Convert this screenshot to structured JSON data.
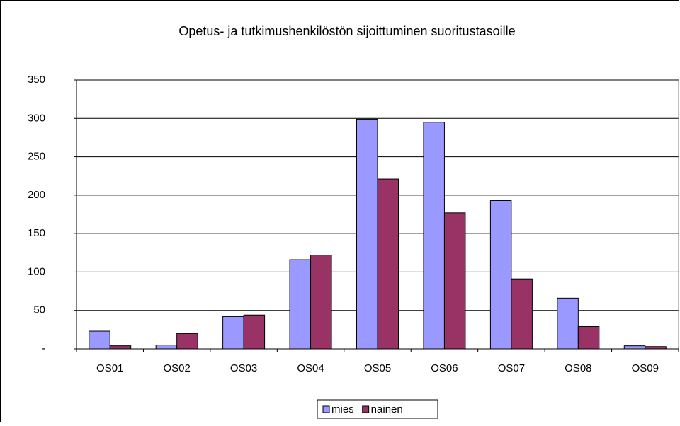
{
  "chart_data": {
    "type": "bar",
    "title": "Opetus- ja tutkimushenkilöstön sijoittuminen suoritustasoille",
    "categories": [
      "OS01",
      "OS02",
      "OS03",
      "OS04",
      "OS05",
      "OS06",
      "OS07",
      "OS08",
      "OS09"
    ],
    "series": [
      {
        "name": "mies",
        "color": "#9999ff",
        "values": [
          23,
          5,
          42,
          116,
          299,
          295,
          193,
          66,
          4
        ]
      },
      {
        "name": "nainen",
        "color": "#993366",
        "values": [
          4,
          20,
          44,
          122,
          221,
          177,
          91,
          29,
          3
        ]
      }
    ],
    "ylim": [
      0,
      350
    ],
    "yticks": [
      {
        "value": 0,
        "label": "-"
      },
      50,
      100,
      150,
      200,
      250,
      300,
      350
    ],
    "grid": true,
    "legend": "bottom"
  }
}
